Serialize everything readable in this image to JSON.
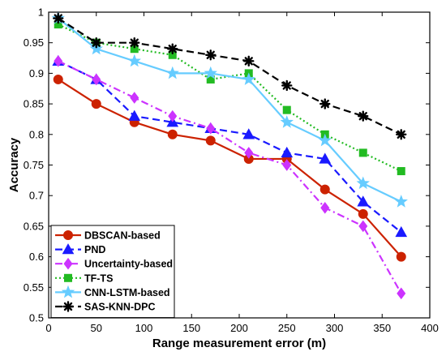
{
  "chart_data": {
    "type": "line",
    "title": "",
    "xlabel": "Range measurement error (m)",
    "ylabel": "Accuracy",
    "xlim": [
      0,
      400
    ],
    "ylim": [
      0.5,
      1
    ],
    "x_ticks": [
      "0",
      "50",
      "100",
      "150",
      "200",
      "250",
      "300",
      "350",
      "400"
    ],
    "y_ticks": [
      "0.5",
      "0.55",
      "0.6",
      "0.65",
      "0.7",
      "0.75",
      "0.8",
      "0.85",
      "0.9",
      "0.95",
      "1"
    ],
    "grid": false,
    "legend_position": "bottom-left",
    "x": [
      10,
      50,
      90,
      130,
      170,
      210,
      250,
      290,
      330,
      370
    ],
    "series": [
      {
        "name": "DBSCAN-based",
        "color": "#cc2200",
        "line": "solid",
        "marker": "circle",
        "values": [
          0.89,
          0.85,
          0.82,
          0.8,
          0.79,
          0.76,
          0.76,
          0.71,
          0.67,
          0.6
        ]
      },
      {
        "name": "PND",
        "color": "#1a1aff",
        "line": "dashed",
        "marker": "triangle",
        "values": [
          0.92,
          0.89,
          0.83,
          0.82,
          0.81,
          0.8,
          0.77,
          0.76,
          0.69,
          0.64
        ]
      },
      {
        "name": "Uncertainty-based",
        "color": "#cc33ff",
        "line": "dashdot",
        "marker": "diamond",
        "values": [
          0.92,
          0.89,
          0.86,
          0.83,
          0.81,
          0.77,
          0.75,
          0.68,
          0.65,
          0.54
        ]
      },
      {
        "name": "TF-TS",
        "color": "#22bb22",
        "line": "dotted",
        "marker": "square",
        "values": [
          0.98,
          0.95,
          0.94,
          0.93,
          0.89,
          0.9,
          0.84,
          0.8,
          0.77,
          0.74
        ]
      },
      {
        "name": "CNN-LSTM-based",
        "color": "#66ccff",
        "line": "solid",
        "marker": "star",
        "values": [
          0.99,
          0.94,
          0.92,
          0.9,
          0.9,
          0.89,
          0.82,
          0.79,
          0.72,
          0.69
        ]
      },
      {
        "name": "SAS-KNN-DPC",
        "color": "#000000",
        "line": "dashed",
        "marker": "asterisk",
        "values": [
          0.99,
          0.95,
          0.95,
          0.94,
          0.93,
          0.92,
          0.88,
          0.85,
          0.83,
          0.8
        ]
      }
    ]
  }
}
